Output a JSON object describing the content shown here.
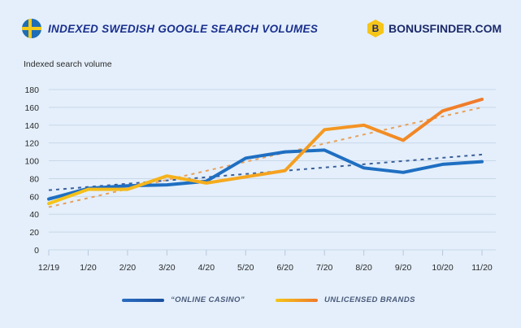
{
  "header": {
    "title": "INDEXED SWEDISH GOOGLE SEARCH VOLUMES",
    "flag_icon": "sweden-flag-icon",
    "brand_letter": "B",
    "brand_name": "BONUSFINDER.COM"
  },
  "colors": {
    "background": "#e4effb",
    "title": "#1a2f8f",
    "online_casino": "#1f6fc2",
    "unlicensed_start": "#f5c518",
    "unlicensed_end": "#f07a2a",
    "grid": "#c9d7e8"
  },
  "chart_data": {
    "type": "line",
    "title": "INDEXED SWEDISH GOOGLE SEARCH VOLUMES",
    "xlabel": "",
    "ylabel": "Indexed search volume",
    "categories": [
      "12/19",
      "1/20",
      "2/20",
      "3/20",
      "4/20",
      "5/20",
      "6/20",
      "7/20",
      "8/20",
      "9/20",
      "10/20",
      "11/20"
    ],
    "yticks": [
      0,
      20,
      40,
      60,
      80,
      100,
      120,
      140,
      160,
      180
    ],
    "ylim": [
      0,
      180
    ],
    "grid": true,
    "legend_position": "bottom-center",
    "series": [
      {
        "name": "“ONLINE CASINO”",
        "values": [
          57,
          69,
          72,
          73,
          77,
          103,
          110,
          112,
          92,
          87,
          96,
          99
        ],
        "trend": [
          67,
          107
        ]
      },
      {
        "name": "UNLICENSED BRANDS",
        "values": [
          52,
          68,
          68,
          83,
          75,
          82,
          89,
          135,
          140,
          123,
          156,
          169
        ],
        "trend": [
          48,
          160
        ]
      }
    ]
  }
}
